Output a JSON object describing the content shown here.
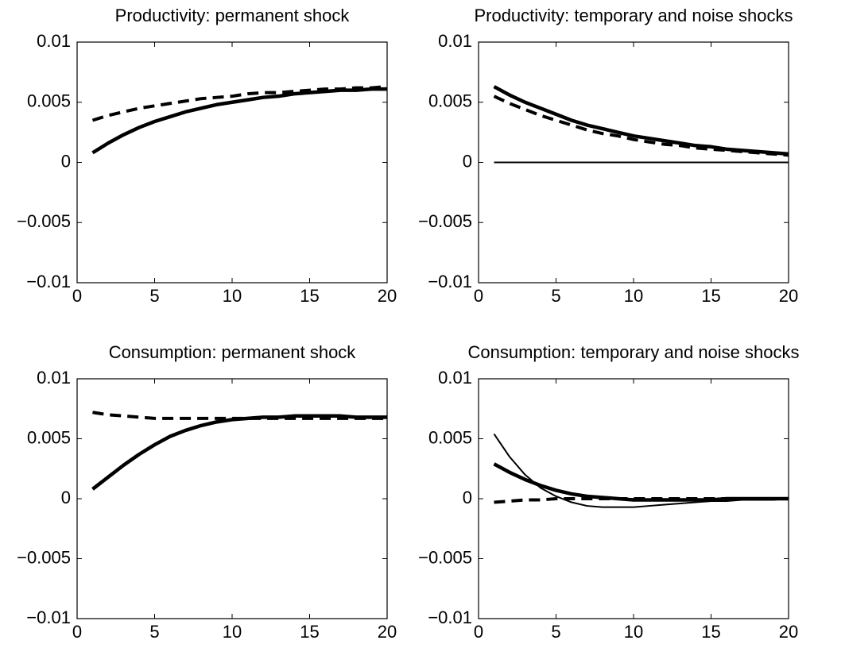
{
  "chart_data": [
    {
      "type": "line",
      "title": "Productivity: permanent shock",
      "x": [
        1,
        2,
        3,
        4,
        5,
        6,
        7,
        8,
        9,
        10,
        11,
        12,
        13,
        14,
        15,
        16,
        17,
        18,
        19,
        20
      ],
      "xlim": [
        0,
        20
      ],
      "xticks": [
        0,
        5,
        10,
        15,
        20
      ],
      "ylim": [
        -0.01,
        0.01
      ],
      "yticks": [
        {
          "value": -0.01,
          "label": "−0.01"
        },
        {
          "value": -0.005,
          "label": "−0.005"
        },
        0,
        0.005,
        0.01
      ],
      "series": [
        {
          "color": "#000000",
          "style": "thick",
          "values": [
            0.0008,
            0.0016,
            0.0023,
            0.0029,
            0.0034,
            0.0038,
            0.0042,
            0.0045,
            0.0048,
            0.005,
            0.0052,
            0.0054,
            0.0055,
            0.0057,
            0.0058,
            0.0059,
            0.006,
            0.006,
            0.0061,
            0.0061
          ]
        },
        {
          "color": "#000000",
          "style": "dashed",
          "values": [
            0.0035,
            0.0039,
            0.0042,
            0.0045,
            0.0047,
            0.0049,
            0.0051,
            0.0053,
            0.0054,
            0.0055,
            0.0057,
            0.0058,
            0.0058,
            0.0059,
            0.006,
            0.0061,
            0.0061,
            0.0062,
            0.0062,
            0.0063
          ]
        }
      ]
    },
    {
      "type": "line",
      "title": "Productivity: temporary and noise shocks",
      "x": [
        1,
        2,
        3,
        4,
        5,
        6,
        7,
        8,
        9,
        10,
        11,
        12,
        13,
        14,
        15,
        16,
        17,
        18,
        19,
        20
      ],
      "xlim": [
        0,
        20
      ],
      "xticks": [
        0,
        5,
        10,
        15,
        20
      ],
      "ylim": [
        -0.01,
        0.01
      ],
      "yticks": [
        {
          "value": -0.01,
          "label": "−0.01"
        },
        {
          "value": -0.005,
          "label": "−0.005"
        },
        0,
        0.005,
        0.01
      ],
      "series": [
        {
          "color": "#000000",
          "style": "thick",
          "values": [
            0.0063,
            0.0056,
            0.005,
            0.0045,
            0.004,
            0.0035,
            0.0031,
            0.0028,
            0.0025,
            0.0022,
            0.002,
            0.0018,
            0.0016,
            0.0014,
            0.0013,
            0.0011,
            0.001,
            0.0009,
            0.0008,
            0.0007
          ]
        },
        {
          "color": "#000000",
          "style": "dashed",
          "values": [
            0.0055,
            0.0049,
            0.0044,
            0.0039,
            0.0035,
            0.0031,
            0.0027,
            0.0024,
            0.0022,
            0.0019,
            0.0017,
            0.0015,
            0.0014,
            0.0012,
            0.0011,
            0.001,
            0.0009,
            0.0008,
            0.0007,
            0.0006
          ]
        },
        {
          "color": "#000000",
          "style": "thin",
          "values": [
            0,
            0,
            0,
            0,
            0,
            0,
            0,
            0,
            0,
            0,
            0,
            0,
            0,
            0,
            0,
            0,
            0,
            0,
            0,
            0
          ]
        }
      ]
    },
    {
      "type": "line",
      "title": "Consumption: permanent shock",
      "x": [
        1,
        2,
        3,
        4,
        5,
        6,
        7,
        8,
        9,
        10,
        11,
        12,
        13,
        14,
        15,
        16,
        17,
        18,
        19,
        20
      ],
      "xlim": [
        0,
        20
      ],
      "xticks": [
        0,
        5,
        10,
        15,
        20
      ],
      "ylim": [
        -0.01,
        0.01
      ],
      "yticks": [
        {
          "value": -0.01,
          "label": "−0.01"
        },
        {
          "value": -0.005,
          "label": "−0.005"
        },
        0,
        0.005,
        0.01
      ],
      "series": [
        {
          "color": "#000000",
          "style": "thick",
          "values": [
            0.0008,
            0.0018,
            0.0028,
            0.0037,
            0.0045,
            0.0052,
            0.0057,
            0.0061,
            0.0064,
            0.0066,
            0.0067,
            0.0068,
            0.0068,
            0.0069,
            0.0069,
            0.0069,
            0.0069,
            0.0068,
            0.0068,
            0.0068
          ]
        },
        {
          "color": "#000000",
          "style": "dashed",
          "values": [
            0.0072,
            0.007,
            0.0069,
            0.0068,
            0.0067,
            0.0067,
            0.0067,
            0.0067,
            0.0067,
            0.0067,
            0.0067,
            0.0067,
            0.0067,
            0.0067,
            0.0067,
            0.0067,
            0.0067,
            0.0067,
            0.0067,
            0.0067
          ]
        }
      ]
    },
    {
      "type": "line",
      "title": "Consumption: temporary and noise shocks",
      "x": [
        1,
        2,
        3,
        4,
        5,
        6,
        7,
        8,
        9,
        10,
        11,
        12,
        13,
        14,
        15,
        16,
        17,
        18,
        19,
        20
      ],
      "xlim": [
        0,
        20
      ],
      "xticks": [
        0,
        5,
        10,
        15,
        20
      ],
      "ylim": [
        -0.01,
        0.01
      ],
      "yticks": [
        {
          "value": -0.01,
          "label": "−0.01"
        },
        {
          "value": -0.005,
          "label": "−0.005"
        },
        0,
        0.005,
        0.01
      ],
      "series": [
        {
          "color": "#000000",
          "style": "thick",
          "values": [
            0.0029,
            0.0022,
            0.0016,
            0.0011,
            0.0007,
            0.0004,
            0.0002,
            0.0001,
            0,
            -0.0001,
            -0.0001,
            -0.0001,
            -0.0001,
            -0.0001,
            -0.0001,
            0,
            0,
            0,
            0,
            0
          ]
        },
        {
          "color": "#000000",
          "style": "thin",
          "values": [
            0.0054,
            0.0035,
            0.002,
            0.0009,
            0.0002,
            -0.0003,
            -0.0006,
            -0.0007,
            -0.0007,
            -0.0007,
            -0.0006,
            -0.0005,
            -0.0004,
            -0.0003,
            -0.0002,
            -0.0002,
            -0.0001,
            -0.0001,
            -0.0001,
            0
          ]
        },
        {
          "color": "#000000",
          "style": "dashed",
          "values": [
            -0.0003,
            -0.0002,
            -0.0001,
            -0.0001,
            0,
            0,
            0,
            0,
            0,
            0,
            0,
            0,
            0,
            0,
            0,
            0,
            0,
            0,
            0,
            0
          ]
        }
      ]
    }
  ]
}
